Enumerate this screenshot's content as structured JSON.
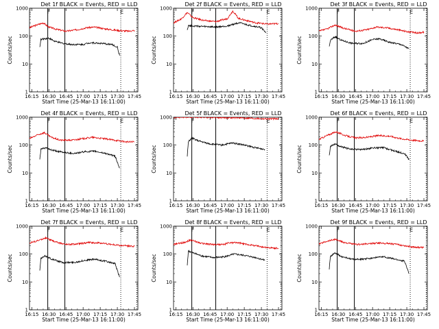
{
  "chart_data": [
    {
      "type": "line",
      "title": "Det 1f BLACK = Events, RED = LLD",
      "ylabel": "Counts/sec",
      "xlabel": "Start Time (25-Mar-13 16:11:00)",
      "y_scale": "log",
      "ylim": [
        1,
        1000
      ],
      "xlim": [
        "16:13",
        "17:48"
      ],
      "y_ticks": [
        "1",
        "10",
        "100",
        "1000"
      ],
      "x_ticks": [
        "16:15",
        "16:30",
        "16:45",
        "17:00",
        "17:15",
        "17:30",
        "17:45"
      ],
      "markers": [
        {
          "label": "F",
          "time": "16:29",
          "style": "solid"
        },
        {
          "label": "",
          "time": "16:44",
          "style": "solid"
        },
        {
          "label": "E",
          "time": "17:33",
          "style": "dotted"
        },
        {
          "label": "",
          "time": "17:47",
          "style": "dotted"
        }
      ],
      "series": [
        {
          "name": "RED = LLD",
          "color": "#e00000",
          "x": [
            "16:13",
            "16:18",
            "16:25",
            "16:30",
            "16:38",
            "16:45",
            "16:55",
            "17:03",
            "17:10",
            "17:20",
            "17:30",
            "17:40",
            "17:45"
          ],
          "values": [
            200,
            240,
            300,
            210,
            170,
            150,
            170,
            200,
            210,
            180,
            160,
            150,
            160
          ]
        },
        {
          "name": "BLACK = Events",
          "color": "#000000",
          "x": [
            "16:22",
            "16:23",
            "16:26",
            "16:30",
            "16:35",
            "16:42",
            "16:50",
            "17:00",
            "17:06",
            "17:15",
            "17:25",
            "17:30",
            "17:32"
          ],
          "values": [
            40,
            75,
            80,
            85,
            65,
            55,
            50,
            50,
            58,
            55,
            50,
            40,
            20
          ]
        }
      ]
    },
    {
      "type": "line",
      "title": "Det 2f BLACK = Events, RED = LLD",
      "ylabel": "Counts/sec",
      "xlabel": "Start Time (25-Mar-13 16:11:00)",
      "y_scale": "log",
      "ylim": [
        1,
        1000
      ],
      "xlim": [
        "16:13",
        "17:48"
      ],
      "y_ticks": [
        "1",
        "10",
        "100",
        "1000"
      ],
      "x_ticks": [
        "16:15",
        "16:30",
        "16:45",
        "17:00",
        "17:15",
        "17:30",
        "17:45"
      ],
      "markers": [
        {
          "label": "F",
          "time": "16:29",
          "style": "solid"
        },
        {
          "label": "",
          "time": "16:50",
          "style": "solid"
        },
        {
          "label": "E",
          "time": "17:35",
          "style": "dotted"
        },
        {
          "label": "",
          "time": "17:47",
          "style": "dotted"
        }
      ],
      "series": [
        {
          "name": "RED = LLD",
          "color": "#e00000",
          "x": [
            "16:13",
            "16:20",
            "16:25",
            "16:30",
            "16:40",
            "16:50",
            "17:00",
            "17:05",
            "17:10",
            "17:15",
            "17:25",
            "17:35",
            "17:45"
          ],
          "values": [
            300,
            420,
            700,
            460,
            360,
            330,
            420,
            800,
            430,
            380,
            300,
            270,
            280
          ]
        },
        {
          "name": "BLACK = Events",
          "color": "#000000",
          "x": [
            "16:25",
            "16:26",
            "16:30",
            "16:40",
            "16:50",
            "17:00",
            "17:10",
            "17:20",
            "17:30",
            "17:34"
          ],
          "values": [
            170,
            240,
            230,
            220,
            210,
            230,
            300,
            240,
            200,
            130
          ]
        }
      ]
    },
    {
      "type": "line",
      "title": "Det 3f BLACK = Events, RED = LLD",
      "ylabel": "Counts/sec",
      "xlabel": "Start Time (25-Mar-13 16:11:00)",
      "y_scale": "log",
      "ylim": [
        1,
        1000
      ],
      "xlim": [
        "16:13",
        "17:48"
      ],
      "y_ticks": [
        "1",
        "10",
        "100",
        "1000"
      ],
      "x_ticks": [
        "16:15",
        "16:30",
        "16:45",
        "17:00",
        "17:15",
        "17:30",
        "17:45"
      ],
      "markers": [
        {
          "label": "F",
          "time": "16:29",
          "style": "solid"
        },
        {
          "label": "",
          "time": "16:44",
          "style": "solid"
        },
        {
          "label": "E",
          "time": "17:33",
          "style": "dotted"
        },
        {
          "label": "",
          "time": "17:47",
          "style": "dotted"
        }
      ],
      "series": [
        {
          "name": "RED = LLD",
          "color": "#e00000",
          "x": [
            "16:13",
            "16:20",
            "16:27",
            "16:35",
            "16:45",
            "16:55",
            "17:03",
            "17:12",
            "17:22",
            "17:32",
            "17:40",
            "17:45"
          ],
          "values": [
            150,
            180,
            250,
            190,
            150,
            170,
            210,
            200,
            170,
            140,
            130,
            140
          ]
        },
        {
          "name": "BLACK = Events",
          "color": "#000000",
          "x": [
            "16:22",
            "16:23",
            "16:27",
            "16:33",
            "16:42",
            "16:52",
            "17:00",
            "17:06",
            "17:15",
            "17:25",
            "17:32"
          ],
          "values": [
            40,
            70,
            95,
            70,
            55,
            55,
            75,
            80,
            60,
            50,
            35
          ]
        }
      ]
    },
    {
      "type": "line",
      "title": "Det 4f BLACK = Events, RED = LLD",
      "ylabel": "Counts/sec",
      "xlabel": "Start Time (25-Mar-13 16:11:00)",
      "y_scale": "log",
      "ylim": [
        1,
        1000
      ],
      "xlim": [
        "16:13",
        "17:48"
      ],
      "y_ticks": [
        "1",
        "10",
        "100",
        "1000"
      ],
      "x_ticks": [
        "16:15",
        "16:30",
        "16:45",
        "17:00",
        "17:15",
        "17:30",
        "17:45"
      ],
      "markers": [
        {
          "label": "F",
          "time": "16:29",
          "style": "solid"
        },
        {
          "label": "",
          "time": "16:44",
          "style": "solid"
        },
        {
          "label": "E",
          "time": "17:33",
          "style": "dotted"
        },
        {
          "label": "",
          "time": "17:47",
          "style": "dotted"
        }
      ],
      "series": [
        {
          "name": "RED = LLD",
          "color": "#e00000",
          "x": [
            "16:13",
            "16:20",
            "16:26",
            "16:32",
            "16:40",
            "16:50",
            "17:00",
            "17:08",
            "17:18",
            "17:28",
            "17:38",
            "17:45"
          ],
          "values": [
            170,
            230,
            280,
            190,
            150,
            150,
            170,
            190,
            170,
            150,
            130,
            130
          ]
        },
        {
          "name": "BLACK = Events",
          "color": "#000000",
          "x": [
            "16:22",
            "16:23",
            "16:27",
            "16:33",
            "16:42",
            "16:52",
            "17:02",
            "17:10",
            "17:20",
            "17:28",
            "17:32"
          ],
          "values": [
            30,
            70,
            80,
            65,
            55,
            50,
            58,
            60,
            50,
            40,
            15
          ]
        }
      ]
    },
    {
      "type": "line",
      "title": "Det 5f BLACK = Events, RED = LLD",
      "ylabel": "Counts/sec",
      "xlabel": "Start Time (25-Mar-13 16:11:00)",
      "y_scale": "log",
      "ylim": [
        1,
        1000
      ],
      "xlim": [
        "16:13",
        "17:48"
      ],
      "y_ticks": [
        "1",
        "10",
        "100",
        "1000"
      ],
      "x_ticks": [
        "16:15",
        "16:30",
        "16:45",
        "17:00",
        "17:15",
        "17:30",
        "17:45"
      ],
      "markers": [
        {
          "label": "F",
          "time": "16:29",
          "style": "solid"
        },
        {
          "label": "",
          "time": "16:50",
          "style": "solid"
        },
        {
          "label": "E",
          "time": "17:35",
          "style": "dotted"
        },
        {
          "label": "",
          "time": "17:47",
          "style": "dotted"
        }
      ],
      "series": [
        {
          "name": "RED = LLD",
          "color": "#e00000",
          "x": [
            "16:13",
            "16:25",
            "16:35",
            "16:45",
            "16:55",
            "17:05",
            "17:15",
            "17:25",
            "17:35",
            "17:45"
          ],
          "values": [
            1000,
            1000,
            1000,
            980,
            960,
            970,
            940,
            910,
            880,
            870
          ]
        },
        {
          "name": "BLACK = Events",
          "color": "#000000",
          "x": [
            "16:25",
            "16:26",
            "16:29",
            "16:35",
            "16:45",
            "16:55",
            "17:05",
            "17:15",
            "17:25",
            "17:33"
          ],
          "values": [
            40,
            130,
            180,
            140,
            110,
            100,
            120,
            100,
            80,
            70
          ]
        }
      ]
    },
    {
      "type": "line",
      "title": "Det 6f BLACK = Events, RED = LLD",
      "ylabel": "Counts/sec",
      "xlabel": "Start Time (25-Mar-13 16:11:00)",
      "y_scale": "log",
      "ylim": [
        1,
        1000
      ],
      "xlim": [
        "16:13",
        "17:48"
      ],
      "y_ticks": [
        "1",
        "10",
        "100",
        "1000"
      ],
      "x_ticks": [
        "16:15",
        "16:30",
        "16:45",
        "17:00",
        "17:15",
        "17:30",
        "17:45"
      ],
      "markers": [
        {
          "label": "F",
          "time": "16:29",
          "style": "solid"
        },
        {
          "label": "",
          "time": "16:44",
          "style": "solid"
        },
        {
          "label": "E",
          "time": "17:33",
          "style": "dotted"
        },
        {
          "label": "",
          "time": "17:47",
          "style": "dotted"
        }
      ],
      "series": [
        {
          "name": "RED = LLD",
          "color": "#e00000",
          "x": [
            "16:13",
            "16:20",
            "16:28",
            "16:36",
            "16:45",
            "16:55",
            "17:05",
            "17:15",
            "17:25",
            "17:35",
            "17:45"
          ],
          "values": [
            160,
            220,
            300,
            220,
            180,
            190,
            220,
            210,
            170,
            150,
            140
          ]
        },
        {
          "name": "BLACK = Events",
          "color": "#000000",
          "x": [
            "16:22",
            "16:23",
            "16:27",
            "16:33",
            "16:42",
            "16:52",
            "17:02",
            "17:10",
            "17:20",
            "17:28",
            "17:32"
          ],
          "values": [
            40,
            90,
            110,
            85,
            70,
            70,
            80,
            80,
            60,
            50,
            30
          ]
        }
      ]
    },
    {
      "type": "line",
      "title": "Det 7f BLACK = Events, RED = LLD",
      "ylabel": "Counts/sec",
      "xlabel": "Start Time (25-Mar-13 16:11:00)",
      "y_scale": "log",
      "ylim": [
        1,
        1000
      ],
      "xlim": [
        "16:13",
        "17:48"
      ],
      "y_ticks": [
        "1",
        "10",
        "100",
        "1000"
      ],
      "x_ticks": [
        "16:15",
        "16:30",
        "16:45",
        "17:00",
        "17:15",
        "17:30",
        "17:45"
      ],
      "markers": [
        {
          "label": "F",
          "time": "16:29",
          "style": "solid"
        },
        {
          "label": "",
          "time": "16:44",
          "style": "solid"
        },
        {
          "label": "E",
          "time": "17:33",
          "style": "dotted"
        },
        {
          "label": "",
          "time": "17:47",
          "style": "dotted"
        }
      ],
      "series": [
        {
          "name": "RED = LLD",
          "color": "#e00000",
          "x": [
            "16:13",
            "16:20",
            "16:27",
            "16:35",
            "16:45",
            "16:55",
            "17:05",
            "17:15",
            "17:25",
            "17:35",
            "17:45"
          ],
          "values": [
            250,
            300,
            380,
            280,
            220,
            230,
            260,
            250,
            220,
            200,
            190
          ]
        },
        {
          "name": "BLACK = Events",
          "color": "#000000",
          "x": [
            "16:22",
            "16:23",
            "16:27",
            "16:33",
            "16:42",
            "16:52",
            "17:02",
            "17:10",
            "17:20",
            "17:28",
            "17:32"
          ],
          "values": [
            25,
            70,
            85,
            65,
            50,
            50,
            60,
            65,
            55,
            45,
            15
          ]
        }
      ]
    },
    {
      "type": "line",
      "title": "Det 8f BLACK = Events, RED = LLD",
      "ylabel": "Counts/sec",
      "xlabel": "Start Time (25-Mar-13 16:11:00)",
      "y_scale": "log",
      "ylim": [
        1,
        1000
      ],
      "xlim": [
        "16:13",
        "17:48"
      ],
      "y_ticks": [
        "1",
        "10",
        "100",
        "1000"
      ],
      "x_ticks": [
        "16:15",
        "16:30",
        "16:45",
        "17:00",
        "17:15",
        "17:30",
        "17:45"
      ],
      "markers": [
        {
          "label": "F",
          "time": "16:29",
          "style": "solid"
        },
        {
          "label": "",
          "time": "16:50",
          "style": "solid"
        },
        {
          "label": "E",
          "time": "17:35",
          "style": "dotted"
        },
        {
          "label": "",
          "time": "17:47",
          "style": "dotted"
        }
      ],
      "series": [
        {
          "name": "RED = LLD",
          "color": "#e00000",
          "x": [
            "16:13",
            "16:22",
            "16:28",
            "16:38",
            "16:48",
            "16:58",
            "17:00",
            "17:08",
            "17:15",
            "17:25",
            "17:35",
            "17:45"
          ],
          "values": [
            220,
            260,
            320,
            240,
            220,
            220,
            250,
            260,
            230,
            200,
            170,
            160
          ]
        },
        {
          "name": "BLACK = Events",
          "color": "#000000",
          "x": [
            "16:25",
            "16:26",
            "16:30",
            "16:38",
            "16:48",
            "16:58",
            "17:06",
            "17:15",
            "17:25",
            "17:33"
          ],
          "values": [
            40,
            130,
            110,
            85,
            75,
            80,
            100,
            90,
            75,
            60
          ]
        }
      ]
    },
    {
      "type": "line",
      "title": "Det 9f BLACK = Events, RED = LLD",
      "ylabel": "Counts/sec",
      "xlabel": "Start Time (25-Mar-13 16:11:00)",
      "y_scale": "log",
      "ylim": [
        1,
        1000
      ],
      "xlim": [
        "16:13",
        "17:48"
      ],
      "y_ticks": [
        "1",
        "10",
        "100",
        "1000"
      ],
      "x_ticks": [
        "16:15",
        "16:30",
        "16:45",
        "17:00",
        "17:15",
        "17:30",
        "17:45"
      ],
      "markers": [
        {
          "label": "F",
          "time": "16:29",
          "style": "solid"
        },
        {
          "label": "",
          "time": "16:44",
          "style": "solid"
        },
        {
          "label": "E",
          "time": "17:33",
          "style": "dotted"
        },
        {
          "label": "",
          "time": "17:47",
          "style": "dotted"
        }
      ],
      "series": [
        {
          "name": "RED = LLD",
          "color": "#e00000",
          "x": [
            "16:13",
            "16:20",
            "16:27",
            "16:35",
            "16:45",
            "16:55",
            "17:05",
            "17:15",
            "17:25",
            "17:35",
            "17:45"
          ],
          "values": [
            230,
            290,
            340,
            260,
            220,
            230,
            250,
            240,
            210,
            180,
            170
          ]
        },
        {
          "name": "BLACK = Events",
          "color": "#000000",
          "x": [
            "16:22",
            "16:23",
            "16:27",
            "16:33",
            "16:42",
            "16:52",
            "17:02",
            "17:10",
            "17:20",
            "17:28",
            "17:32"
          ],
          "values": [
            30,
            80,
            110,
            80,
            65,
            65,
            75,
            80,
            65,
            55,
            20
          ]
        }
      ]
    }
  ]
}
